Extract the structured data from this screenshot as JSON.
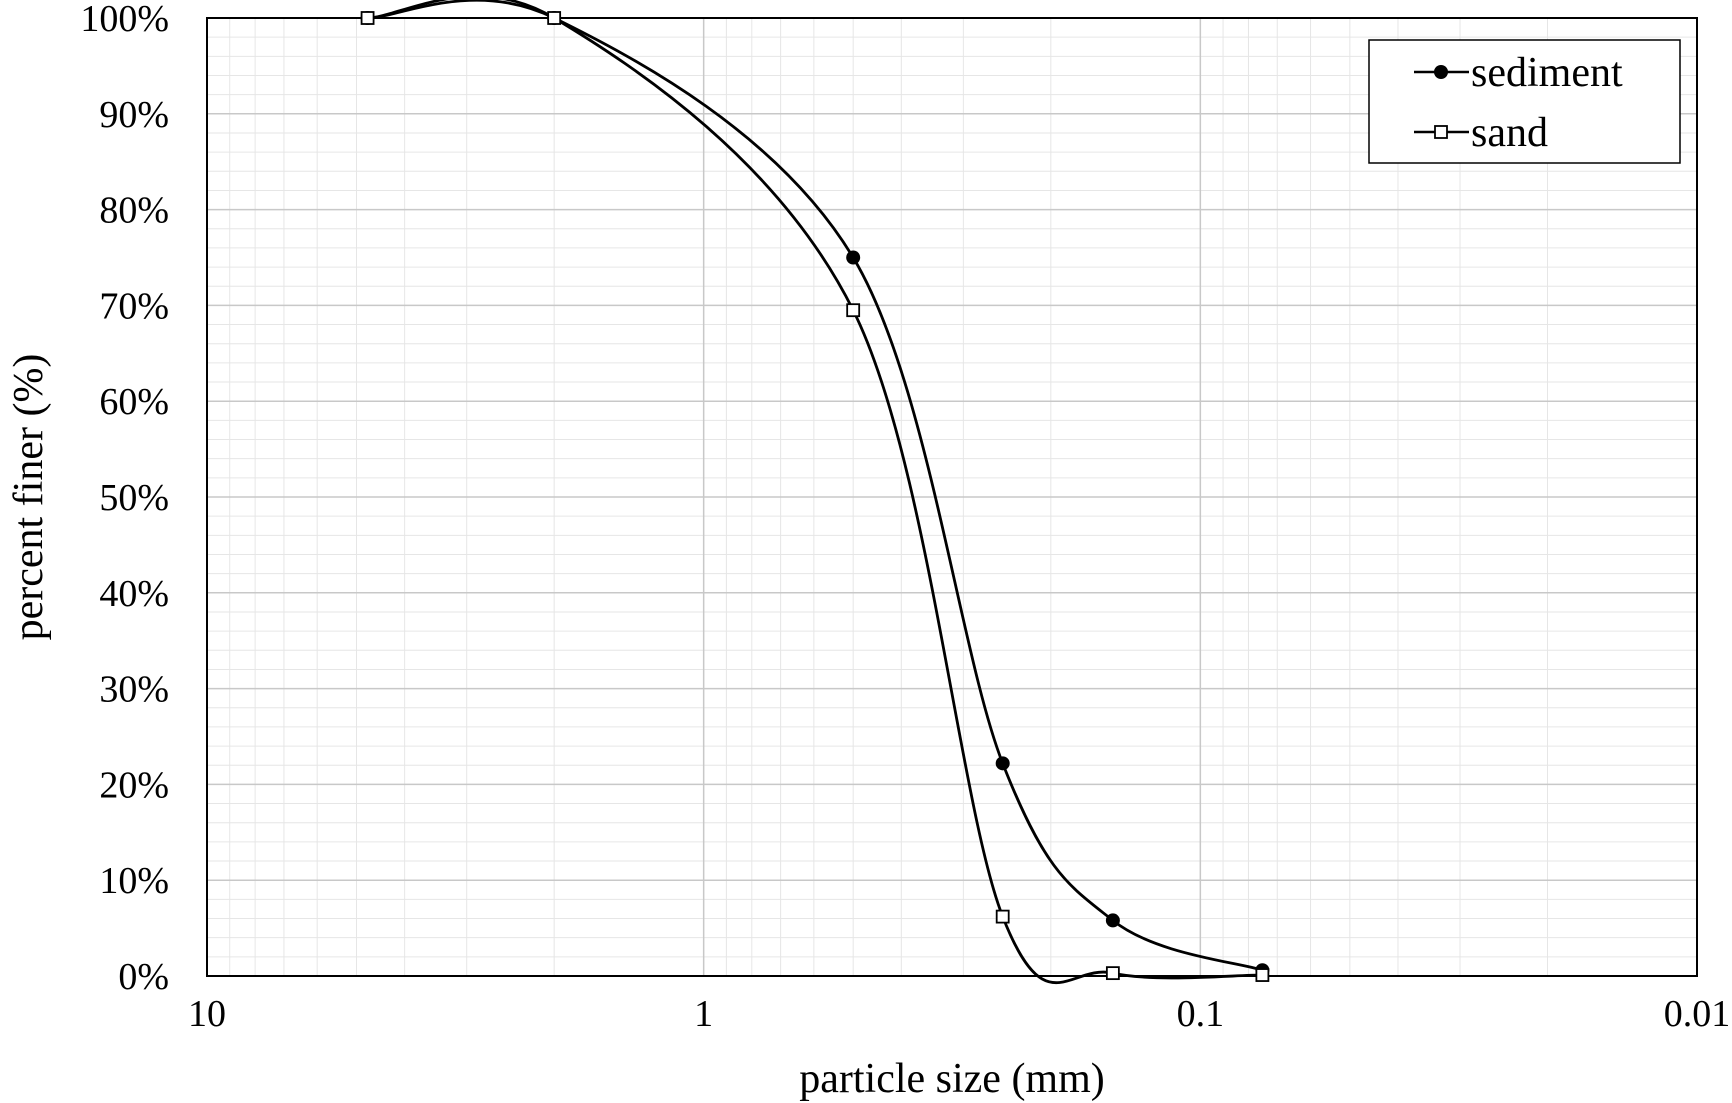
{
  "chart_data": {
    "type": "line",
    "title": "",
    "xlabel": "particle size (mm)",
    "ylabel": "percent finer (%)",
    "x_scale": "log",
    "x_reversed": true,
    "xlim": [
      10,
      0.01
    ],
    "ylim": [
      0,
      100
    ],
    "x_ticks": [
      10,
      1,
      0.1,
      0.01
    ],
    "x_tick_labels": [
      "10",
      "1",
      "0.1",
      "0.01"
    ],
    "y_ticks": [
      0,
      10,
      20,
      30,
      40,
      50,
      60,
      70,
      80,
      90,
      100
    ],
    "y_tick_labels": [
      "0%",
      "10%",
      "20%",
      "30%",
      "40%",
      "50%",
      "60%",
      "70%",
      "80%",
      "90%",
      "100%"
    ],
    "grid": true,
    "minor_grid": true,
    "legend_position": "top-right",
    "series": [
      {
        "name": "sediment",
        "marker": "filled-circle",
        "color": "#000000",
        "x": [
          4.75,
          2.0,
          0.5,
          0.25,
          0.15,
          0.075
        ],
        "y": [
          100,
          100,
          75,
          22.2,
          5.8,
          0.6
        ]
      },
      {
        "name": "sand",
        "marker": "open-square",
        "color": "#000000",
        "x": [
          4.75,
          2.0,
          0.5,
          0.25,
          0.15,
          0.075
        ],
        "y": [
          100,
          100,
          69.5,
          6.2,
          0.3,
          0.1
        ]
      }
    ]
  }
}
